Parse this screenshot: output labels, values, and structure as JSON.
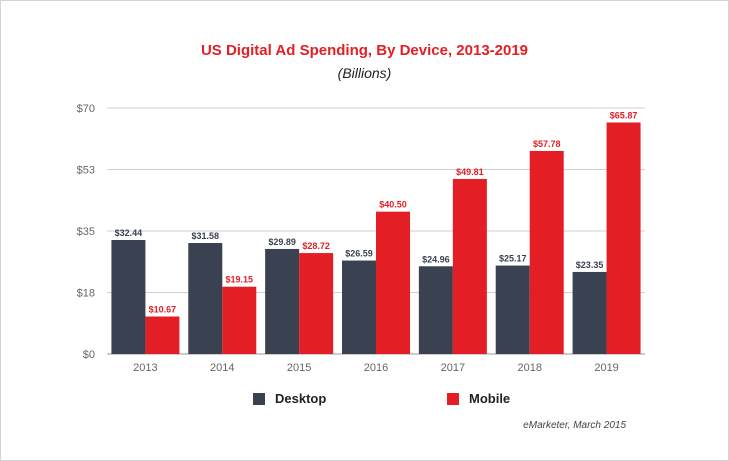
{
  "chart_data": {
    "type": "bar",
    "title": "US Digital Ad Spending, By Device, 2013-2019",
    "subtitle": "(Billions)",
    "categories": [
      "2013",
      "2014",
      "2015",
      "2016",
      "2017",
      "2018",
      "2019"
    ],
    "series": [
      {
        "name": "Desktop",
        "color": "#3a4150",
        "values": [
          32.44,
          31.58,
          29.89,
          26.59,
          24.96,
          25.17,
          23.35
        ],
        "labels": [
          "$32.44",
          "$31.58",
          "$29.89",
          "$26.59",
          "$24.96",
          "$25.17",
          "$23.35"
        ]
      },
      {
        "name": "Mobile",
        "color": "#e31e24",
        "values": [
          10.67,
          19.15,
          28.72,
          40.5,
          49.81,
          57.78,
          65.87
        ],
        "labels": [
          "$10.67",
          "$19.15",
          "$28.72",
          "$40.50",
          "$49.81",
          "$57.78",
          "$65.87"
        ]
      }
    ],
    "yticks": [
      {
        "value": 0,
        "label": "$0"
      },
      {
        "value": 17.5,
        "label": "$18"
      },
      {
        "value": 35,
        "label": "$35"
      },
      {
        "value": 52.5,
        "label": "$53"
      },
      {
        "value": 70,
        "label": "$70"
      }
    ],
    "ylim": [
      0,
      70
    ],
    "grid": true,
    "legend_position": "bottom",
    "title_color": "#e31e24",
    "source": "eMarketer, March 2015"
  }
}
